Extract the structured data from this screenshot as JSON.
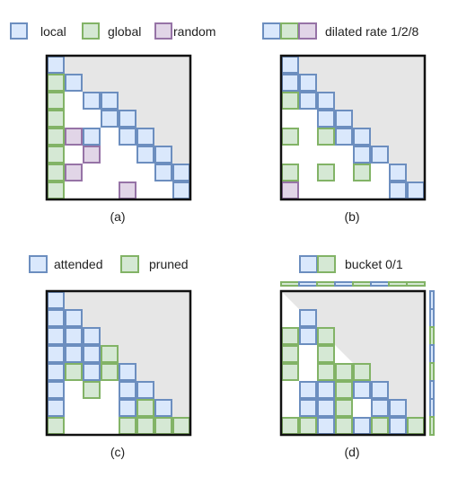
{
  "colors": {
    "local": {
      "fill": "#dae8fc",
      "stroke": "#6c8ebf"
    },
    "global": {
      "fill": "#d5e8d4",
      "stroke": "#82b366"
    },
    "random": {
      "fill": "#e1d5e7",
      "stroke": "#9673a6"
    },
    "masked": "#e6e6e6",
    "frame": "#111111"
  },
  "panel_a": {
    "legend": {
      "local": "local",
      "global": "global",
      "random": "random"
    },
    "caption": "(a)",
    "grid": [
      "L.......",
      "GL......",
      "G.LL....",
      "G..LL...",
      "GRL.LL..",
      "G.R..LL.",
      "GR....LL",
      "G...R..L"
    ]
  },
  "panel_b": {
    "legend": {
      "label": "dilated rate 1/2/8"
    },
    "caption": "(b)",
    "grid": [
      "L.......",
      "LL......",
      "GLL.....",
      "..LL....",
      "G.GLL...",
      "....LL..",
      "G.G.G.L.",
      "R.....LL"
    ]
  },
  "panel_c": {
    "legend": {
      "attended": "attended",
      "pruned": "pruned"
    },
    "caption": "(c)",
    "grid": [
      "A.......",
      "AA......",
      "AAA.....",
      "AAAP....",
      "APAPA...",
      "A.P.AA..",
      "A...APA.",
      "P...PPPP"
    ]
  },
  "panel_d": {
    "legend": {
      "label": "bucket 0/1"
    },
    "caption": "(d)",
    "grid": [
      "........",
      ".A......",
      "PAP.....",
      "P.P.....",
      "P.PPP...",
      ".AAPAA..",
      ".AAP.AA.",
      "PPAPAPAP"
    ],
    "top_strip": "PAPAPAPP",
    "right_strip": "AAPAPAAP"
  }
}
